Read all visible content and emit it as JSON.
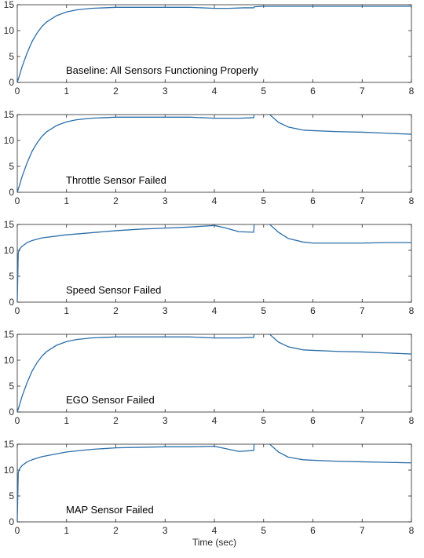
{
  "chart_data": [
    {
      "type": "line",
      "annotation": "Baseline: All Sensors Functioning Properly",
      "xlim": [
        0,
        8
      ],
      "ylim": [
        0,
        15
      ],
      "xticks": [
        0,
        1,
        2,
        3,
        4,
        5,
        6,
        7,
        8
      ],
      "yticks": [
        0,
        5,
        10,
        15
      ],
      "series": [
        {
          "color": "#2b6ea8",
          "x": [
            0,
            0.05,
            0.1,
            0.2,
            0.3,
            0.4,
            0.5,
            0.6,
            0.8,
            1.0,
            1.2,
            1.5,
            2.0,
            2.5,
            3.0,
            3.5,
            4.0,
            4.3,
            4.6,
            4.8,
            4.81,
            5.0,
            6.0,
            7.0,
            8.0
          ],
          "y": [
            0,
            1.5,
            3.1,
            5.7,
            7.9,
            9.5,
            10.8,
            11.7,
            12.9,
            13.6,
            14.0,
            14.3,
            14.5,
            14.5,
            14.5,
            14.5,
            14.3,
            14.3,
            14.4,
            14.4,
            14.6,
            14.7,
            14.7,
            14.7,
            14.7
          ]
        }
      ]
    },
    {
      "type": "line",
      "annotation": "Throttle Sensor Failed",
      "xlim": [
        0,
        8
      ],
      "ylim": [
        0,
        15
      ],
      "xticks": [
        0,
        1,
        2,
        3,
        4,
        5,
        6,
        7,
        8
      ],
      "yticks": [
        0,
        5,
        10,
        15
      ],
      "series": [
        {
          "color": "#2b6ea8",
          "x": [
            0,
            0.05,
            0.1,
            0.2,
            0.3,
            0.4,
            0.5,
            0.6,
            0.8,
            1.0,
            1.2,
            1.5,
            2.0,
            2.5,
            3.0,
            3.5,
            4.0,
            4.5,
            4.8,
            4.81,
            4.82,
            null,
            5.0,
            5.1,
            5.3,
            5.5,
            5.8,
            6.0,
            6.5,
            7.0,
            7.5,
            8.0
          ],
          "y": [
            0,
            1.5,
            3.1,
            5.7,
            7.9,
            9.5,
            10.8,
            11.7,
            12.9,
            13.6,
            14.0,
            14.3,
            14.5,
            14.5,
            14.5,
            14.5,
            14.3,
            14.3,
            14.4,
            15.5,
            17,
            null,
            17,
            15.2,
            13.5,
            12.6,
            12.0,
            11.9,
            11.7,
            11.6,
            11.4,
            11.2
          ]
        }
      ]
    },
    {
      "type": "line",
      "annotation": "Speed Sensor Failed",
      "xlim": [
        0,
        8
      ],
      "ylim": [
        0,
        15
      ],
      "xticks": [
        0,
        1,
        2,
        3,
        4,
        5,
        6,
        7,
        8
      ],
      "yticks": [
        0,
        5,
        10,
        15
      ],
      "series": [
        {
          "color": "#2b6ea8",
          "x": [
            0,
            0.02,
            0.05,
            0.1,
            0.2,
            0.3,
            0.5,
            1.0,
            1.5,
            2.0,
            2.5,
            3.0,
            3.5,
            4.0,
            4.2,
            4.5,
            4.8,
            4.81,
            4.82,
            null,
            5.0,
            5.1,
            5.3,
            5.5,
            5.8,
            6.0,
            6.5,
            7.0,
            7.5,
            8.0
          ],
          "y": [
            0,
            9.5,
            10.3,
            10.8,
            11.5,
            11.9,
            12.4,
            13.0,
            13.4,
            13.8,
            14.1,
            14.3,
            14.5,
            14.8,
            14.4,
            13.6,
            13.5,
            15.5,
            17,
            null,
            17,
            15.2,
            13.5,
            12.3,
            11.6,
            11.4,
            11.4,
            11.4,
            11.5,
            11.5
          ]
        }
      ]
    },
    {
      "type": "line",
      "annotation": "EGO Sensor Failed",
      "xlim": [
        0,
        8
      ],
      "ylim": [
        0,
        15
      ],
      "xticks": [
        0,
        1,
        2,
        3,
        4,
        5,
        6,
        7,
        8
      ],
      "yticks": [
        0,
        5,
        10,
        15
      ],
      "series": [
        {
          "color": "#2b6ea8",
          "x": [
            0,
            0.05,
            0.1,
            0.2,
            0.3,
            0.4,
            0.5,
            0.6,
            0.8,
            1.0,
            1.2,
            1.5,
            2.0,
            2.5,
            3.0,
            3.5,
            4.0,
            4.5,
            4.8,
            4.81,
            4.82,
            null,
            5.0,
            5.1,
            5.3,
            5.5,
            5.8,
            6.0,
            6.5,
            7.0,
            7.5,
            8.0
          ],
          "y": [
            0,
            1.5,
            3.1,
            5.7,
            7.9,
            9.5,
            10.8,
            11.7,
            12.9,
            13.6,
            14.0,
            14.3,
            14.5,
            14.5,
            14.5,
            14.5,
            14.3,
            14.3,
            14.4,
            15.5,
            17,
            null,
            17,
            15.2,
            13.5,
            12.6,
            12.0,
            11.9,
            11.7,
            11.6,
            11.4,
            11.2
          ]
        }
      ]
    },
    {
      "type": "line",
      "annotation": "MAP Sensor Failed",
      "xlim": [
        0,
        8
      ],
      "ylim": [
        0,
        15
      ],
      "xticks": [
        0,
        1,
        2,
        3,
        4,
        5,
        6,
        7,
        8
      ],
      "yticks": [
        0,
        5,
        10,
        15
      ],
      "xlabel": "Time (sec)",
      "series": [
        {
          "color": "#2b6ea8",
          "x": [
            0,
            0.02,
            0.05,
            0.1,
            0.2,
            0.3,
            0.5,
            1.0,
            1.5,
            2.0,
            2.5,
            3.0,
            3.5,
            4.0,
            4.2,
            4.5,
            4.8,
            4.81,
            4.82,
            null,
            5.0,
            5.1,
            5.3,
            5.5,
            5.8,
            6.0,
            6.5,
            7.0,
            7.5,
            8.0
          ],
          "y": [
            0,
            9.5,
            10.3,
            10.9,
            11.6,
            12.0,
            12.6,
            13.5,
            14.0,
            14.3,
            14.4,
            14.5,
            14.5,
            14.6,
            14.2,
            13.6,
            13.8,
            15.5,
            17,
            null,
            17,
            15.2,
            13.5,
            12.5,
            12.0,
            11.9,
            11.7,
            11.6,
            11.5,
            11.4
          ]
        }
      ]
    }
  ]
}
